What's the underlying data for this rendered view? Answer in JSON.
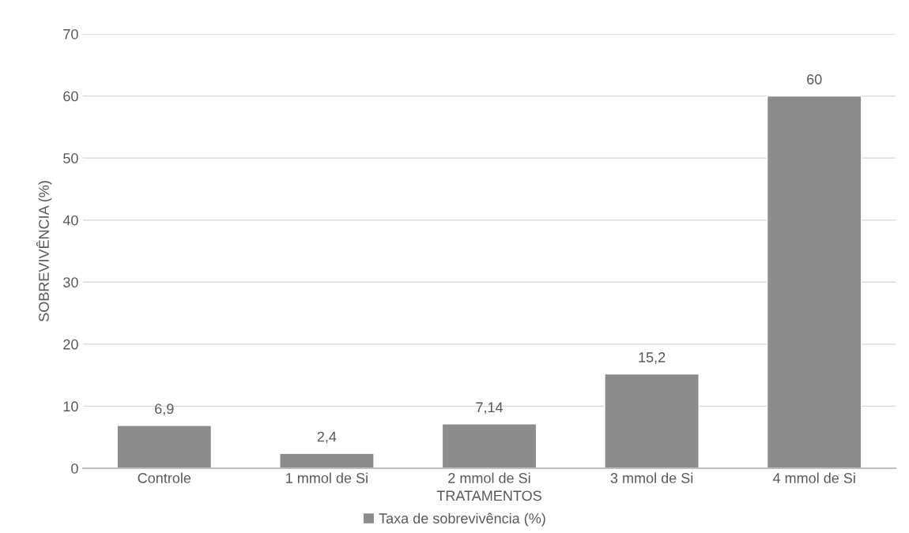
{
  "chart_data": {
    "type": "bar",
    "xlabel": "TRATAMENTOS",
    "ylabel": "SOBREVIVÊNCIA (%)",
    "categories": [
      "Controle",
      "1 mmol de Si",
      "2 mmol de Si",
      "3 mmol de Si",
      "4 mmol de Si"
    ],
    "series": [
      {
        "name": "Taxa de sobrevivência (%)",
        "color": "#8c8c8c",
        "values": [
          6.9,
          2.4,
          7.14,
          15.2,
          60
        ],
        "value_labels": [
          "6,9",
          "2,4",
          "7,14",
          "15,2",
          "60"
        ]
      }
    ],
    "ylim": [
      0,
      70
    ],
    "yticks": [
      0,
      10,
      20,
      30,
      40,
      50,
      60,
      70
    ],
    "grid": "y",
    "legend": "bottom"
  }
}
